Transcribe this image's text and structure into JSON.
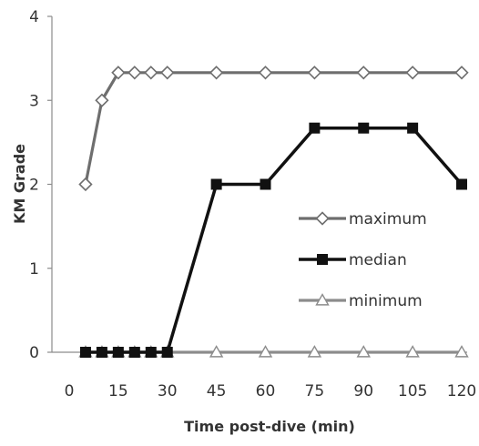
{
  "chart_data": {
    "type": "line",
    "xlabel": "Time post-dive (min)",
    "ylabel": "KM Grade",
    "xlim": [
      0,
      120
    ],
    "ylim": [
      0,
      4
    ],
    "x_ticks": [
      0,
      15,
      30,
      45,
      60,
      75,
      90,
      105,
      120
    ],
    "y_ticks": [
      0,
      1,
      2,
      3,
      4
    ],
    "grid": false,
    "legend_position": "right",
    "series": [
      {
        "name": "maximum",
        "color": "#6e6e6e",
        "marker": "diamond-open",
        "x": [
          5,
          10,
          15,
          20,
          25,
          30,
          45,
          60,
          75,
          90,
          105,
          120
        ],
        "y": [
          2,
          3,
          3.33,
          3.33,
          3.33,
          3.33,
          3.33,
          3.33,
          3.33,
          3.33,
          3.33,
          3.33
        ]
      },
      {
        "name": "median",
        "color": "#111111",
        "marker": "square-filled",
        "x": [
          5,
          10,
          15,
          20,
          25,
          30,
          45,
          60,
          75,
          90,
          105,
          120
        ],
        "y": [
          0,
          0,
          0,
          0,
          0,
          0,
          2,
          2,
          2.67,
          2.67,
          2.67,
          2
        ]
      },
      {
        "name": "minimum",
        "color": "#8c8c8c",
        "marker": "triangle-open",
        "x": [
          5,
          10,
          15,
          20,
          25,
          30,
          45,
          60,
          75,
          90,
          105,
          120
        ],
        "y": [
          0,
          0,
          0,
          0,
          0,
          0,
          0,
          0,
          0,
          0,
          0,
          0
        ]
      }
    ]
  }
}
